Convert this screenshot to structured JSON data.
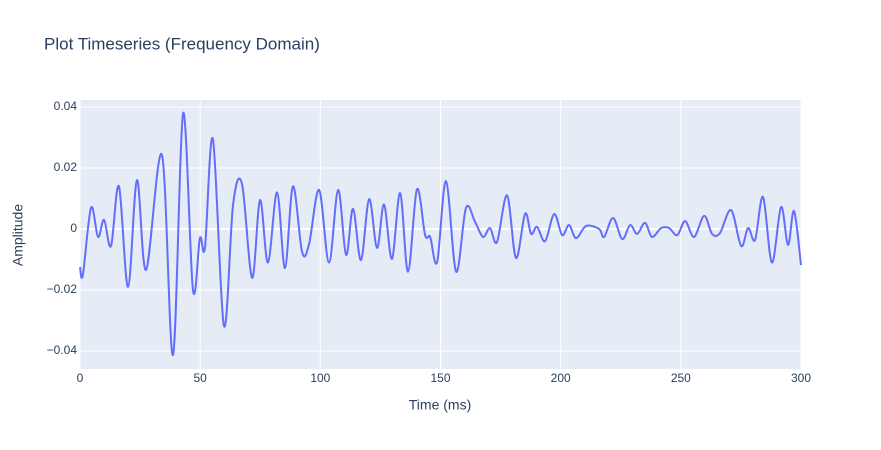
{
  "chart_data": {
    "type": "line",
    "title": "Plot Timeseries (Frequency Domain)",
    "x_label": "Time (ms)",
    "y_label": "Amplitude",
    "xlim": [
      0,
      300
    ],
    "xticks": [
      0,
      50,
      100,
      150,
      200,
      250,
      300
    ],
    "ylim": [
      -0.0459,
      0.0423
    ],
    "yticks": [
      {
        "value": -0.04,
        "label": "−0.04"
      },
      {
        "value": -0.02,
        "label": "−0.02"
      },
      0,
      0.02,
      0.04
    ],
    "grid": true,
    "x": [
      0,
      1.2,
      4.6,
      7.5,
      10.0,
      12.9,
      16.2,
      20.0,
      23.7,
      27.5,
      34.1,
      38.7,
      42.9,
      47.0,
      49.9,
      52.0,
      55.3,
      59.9,
      63.7,
      67.4,
      71.6,
      74.9,
      78.2,
      82.0,
      85.3,
      88.6,
      92.4,
      95.3,
      99.5,
      103.6,
      107.4,
      110.7,
      113.6,
      116.9,
      120.3,
      123.6,
      126.5,
      129.8,
      133.2,
      136.5,
      140.2,
      143.6,
      145.7,
      148.6,
      152.3,
      156.5,
      160.6,
      164.4,
      167.7,
      170.6,
      173.5,
      177.7,
      181.4,
      185.2,
      187.7,
      190.2,
      193.5,
      197.3,
      200.6,
      203.5,
      206.4,
      210.6,
      216.0,
      218.1,
      221.8,
      225.6,
      228.9,
      231.8,
      235.1,
      238.0,
      241.8,
      245.1,
      248.5,
      251.8,
      255.5,
      259.7,
      263.0,
      266.3,
      270.9,
      275.1,
      278.0,
      280.9,
      284.2,
      287.9,
      291.7,
      294.6,
      297.1,
      300.0
    ],
    "series": [
      {
        "name": "Amplitude",
        "color": "#636efa",
        "values": [
          -0.0125,
          -0.015,
          0.007,
          -0.0026,
          0.003,
          -0.0056,
          0.014,
          -0.019,
          0.016,
          -0.0134,
          0.0243,
          -0.0413,
          0.038,
          -0.02,
          -0.003,
          -0.006,
          0.0295,
          -0.0318,
          0.008,
          0.0148,
          -0.016,
          0.0095,
          -0.011,
          0.012,
          -0.0128,
          0.014,
          -0.0075,
          -0.005,
          0.0128,
          -0.011,
          0.0128,
          -0.0085,
          0.0066,
          -0.0102,
          0.0098,
          -0.0062,
          0.008,
          -0.0098,
          0.0118,
          -0.014,
          0.013,
          -0.002,
          -0.0026,
          -0.0108,
          0.0157,
          -0.014,
          0.0069,
          0.0023,
          -0.0026,
          0.0003,
          -0.0043,
          0.011,
          -0.0095,
          0.005,
          -0.0016,
          0.0007,
          -0.004,
          0.0049,
          -0.002,
          0.0013,
          -0.003,
          0.001,
          0,
          -0.0026,
          0.0036,
          -0.0033,
          0.0013,
          -0.0016,
          0.002,
          -0.0026,
          0.0003,
          0.0003,
          -0.002,
          0.0026,
          -0.0026,
          0.0043,
          -0.0016,
          -0.0013,
          0.0062,
          -0.0056,
          0.0003,
          -0.0036,
          0.0105,
          -0.011,
          0.0072,
          -0.0052,
          0.0059,
          -0.0118
        ]
      }
    ]
  }
}
